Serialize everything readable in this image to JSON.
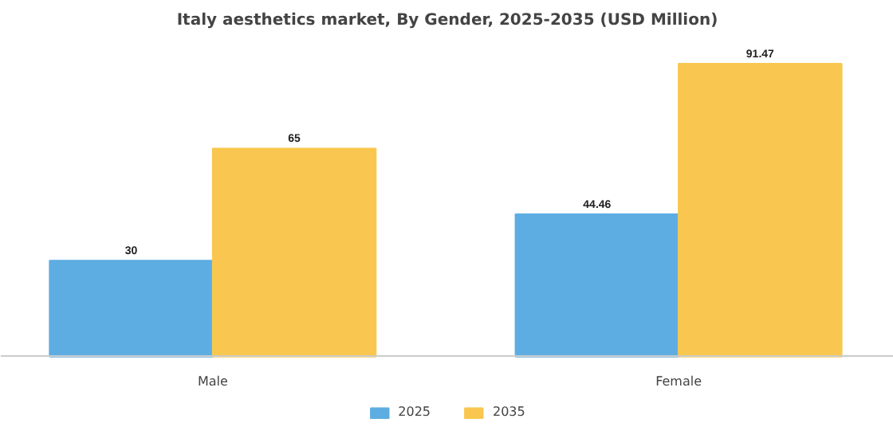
{
  "chart_data": {
    "type": "bar",
    "title": "Italy aesthetics market, By Gender, 2025-2035 (USD Million)",
    "categories": [
      "Male",
      "Female"
    ],
    "series": [
      {
        "name": "2025",
        "color": "#5dade2",
        "values": [
          30,
          44.46
        ]
      },
      {
        "name": "2035",
        "color": "#f9c74f",
        "values": [
          65,
          91.47
        ]
      }
    ],
    "data_labels": true,
    "legend": "bottom",
    "grid": false
  }
}
